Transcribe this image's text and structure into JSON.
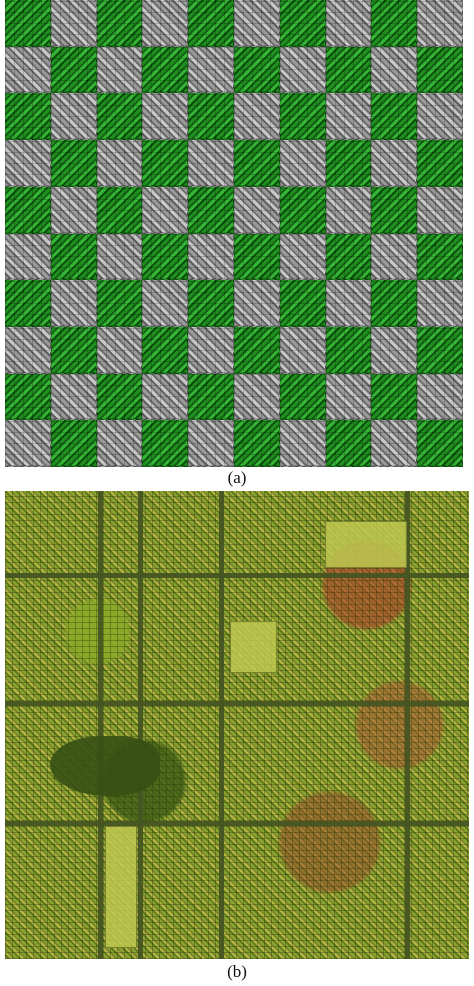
{
  "figure": {
    "panel_a": {
      "caption": "(a)"
    },
    "panel_b": {
      "caption": "(b)"
    }
  }
}
